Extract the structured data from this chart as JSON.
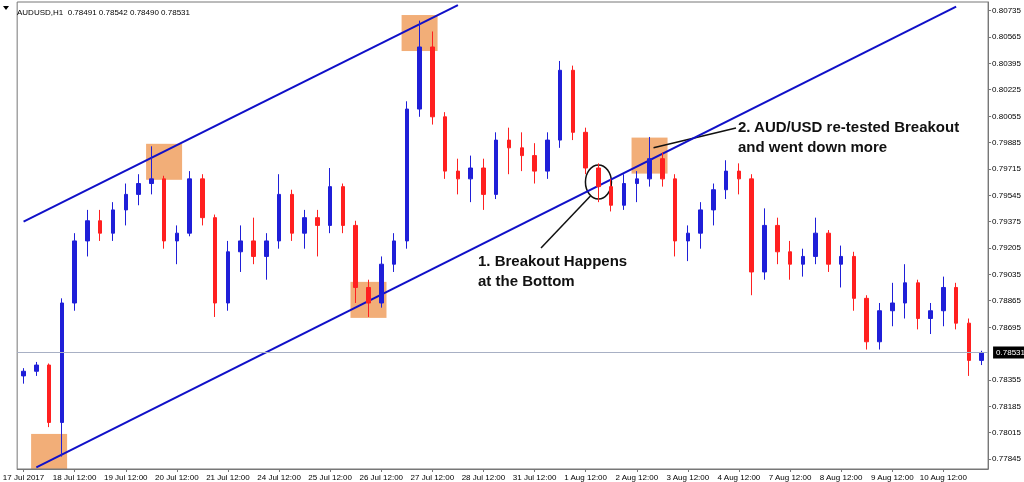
{
  "chart_data": {
    "type": "candlestick",
    "title": "AUDUSD,H1  0.78491 0.78542 0.78490 0.78531",
    "categories": [
      "17 Jul 2017",
      null,
      null,
      null,
      "18 Jul 12:00",
      null,
      null,
      null,
      "19 Jul 12:00",
      null,
      null,
      null,
      "20 Jul 12:00",
      null,
      null,
      null,
      "21 Jul 12:00",
      null,
      null,
      null,
      "24 Jul 12:00",
      null,
      null,
      null,
      "25 Jul 12:00",
      null,
      null,
      null,
      "26 Jul 12:00",
      null,
      null,
      null,
      "27 Jul 12:00",
      null,
      null,
      null,
      "28 Jul 12:00",
      null,
      null,
      null,
      "31 Jul 12:00",
      null,
      null,
      null,
      "1 Aug 12:00",
      null,
      null,
      null,
      "2 Aug 12:00",
      null,
      null,
      null,
      "3 Aug 12:00",
      null,
      null,
      null,
      "4 Aug 12:00",
      null,
      null,
      null,
      "7 Aug 12:00",
      null,
      null,
      null,
      "8 Aug 12:00",
      null,
      null,
      null,
      "9 Aug 12:00",
      null,
      null,
      null,
      "10 Aug 12:00",
      null,
      null,
      null
    ],
    "series": [
      {
        "ohlc": [
          [
            0.7838,
            0.7843,
            0.7833,
            0.7841
          ],
          [
            0.7841,
            0.7847,
            0.7838,
            0.7845
          ],
          [
            0.7845,
            0.7846,
            0.7805,
            0.7808
          ],
          [
            0.7808,
            0.7888,
            0.7786,
            0.7885
          ],
          [
            0.7885,
            0.793,
            0.788,
            0.7925
          ],
          [
            0.7925,
            0.7945,
            0.7915,
            0.7938
          ],
          [
            0.7938,
            0.7945,
            0.7925,
            0.793
          ],
          [
            0.793,
            0.795,
            0.7925,
            0.7945
          ],
          [
            0.7945,
            0.7962,
            0.7935,
            0.7955
          ],
          [
            0.7955,
            0.7968,
            0.7948,
            0.7962
          ],
          [
            0.7962,
            0.7986,
            0.7955,
            0.7965
          ],
          [
            0.7965,
            0.7967,
            0.792,
            0.7925
          ],
          [
            0.7925,
            0.7935,
            0.791,
            0.793
          ],
          [
            0.793,
            0.797,
            0.7928,
            0.7965
          ],
          [
            0.7965,
            0.7968,
            0.7935,
            0.794
          ],
          [
            0.794,
            0.7942,
            0.7876,
            0.7885
          ],
          [
            0.7885,
            0.7925,
            0.788,
            0.7918
          ],
          [
            0.7918,
            0.7935,
            0.7905,
            0.7925
          ],
          [
            0.7925,
            0.794,
            0.791,
            0.7915
          ],
          [
            0.7915,
            0.793,
            0.79,
            0.7925
          ],
          [
            0.7925,
            0.7968,
            0.792,
            0.7955
          ],
          [
            0.7955,
            0.7958,
            0.7925,
            0.793
          ],
          [
            0.793,
            0.7945,
            0.792,
            0.794
          ],
          [
            0.794,
            0.7945,
            0.7915,
            0.7935
          ],
          [
            0.7935,
            0.7972,
            0.793,
            0.796
          ],
          [
            0.796,
            0.7962,
            0.793,
            0.7935
          ],
          [
            0.7935,
            0.7938,
            0.7885,
            0.7895
          ],
          [
            0.7895,
            0.79,
            0.7876,
            0.7885
          ],
          [
            0.7885,
            0.7915,
            0.7882,
            0.791
          ],
          [
            0.791,
            0.793,
            0.7905,
            0.7925
          ],
          [
            0.7925,
            0.8015,
            0.792,
            0.801
          ],
          [
            0.801,
            0.8067,
            0.8005,
            0.805
          ],
          [
            0.805,
            0.806,
            0.8,
            0.8005
          ],
          [
            0.8005,
            0.8008,
            0.7965,
            0.797
          ],
          [
            0.797,
            0.7978,
            0.7955,
            0.7965
          ],
          [
            0.7965,
            0.798,
            0.795,
            0.7972
          ],
          [
            0.7972,
            0.7978,
            0.7945,
            0.7955
          ],
          [
            0.7955,
            0.7995,
            0.7952,
            0.799
          ],
          [
            0.799,
            0.7998,
            0.7968,
            0.7985
          ],
          [
            0.7985,
            0.7995,
            0.797,
            0.798
          ],
          [
            0.798,
            0.7988,
            0.7962,
            0.797
          ],
          [
            0.797,
            0.7995,
            0.7965,
            0.799
          ],
          [
            0.799,
            0.8041,
            0.7985,
            0.8035
          ],
          [
            0.8035,
            0.8038,
            0.799,
            0.7995
          ],
          [
            0.7995,
            0.7998,
            0.7968,
            0.7972
          ],
          [
            0.7972,
            0.7975,
            0.795,
            0.796
          ],
          [
            0.796,
            0.7965,
            0.7944,
            0.7948
          ],
          [
            0.7948,
            0.7968,
            0.7945,
            0.7962
          ],
          [
            0.7962,
            0.797,
            0.795,
            0.7965
          ],
          [
            0.7965,
            0.7992,
            0.796,
            0.7978
          ],
          [
            0.7978,
            0.7982,
            0.796,
            0.7965
          ],
          [
            0.7965,
            0.7968,
            0.7915,
            0.7925
          ],
          [
            0.7925,
            0.7935,
            0.7912,
            0.793
          ],
          [
            0.793,
            0.795,
            0.792,
            0.7945
          ],
          [
            0.7945,
            0.7962,
            0.7935,
            0.7958
          ],
          [
            0.7958,
            0.7977,
            0.7952,
            0.797
          ],
          [
            0.797,
            0.7975,
            0.7955,
            0.7965
          ],
          [
            0.7965,
            0.7968,
            0.789,
            0.7905
          ],
          [
            0.7905,
            0.7946,
            0.79,
            0.7935
          ],
          [
            0.7935,
            0.794,
            0.791,
            0.7918
          ],
          [
            0.7918,
            0.7925,
            0.79,
            0.791
          ],
          [
            0.791,
            0.792,
            0.7902,
            0.7915
          ],
          [
            0.7915,
            0.794,
            0.791,
            0.793
          ],
          [
            0.793,
            0.7932,
            0.7905,
            0.791
          ],
          [
            0.791,
            0.7922,
            0.7895,
            0.7915
          ],
          [
            0.7915,
            0.7918,
            0.788,
            0.7888
          ],
          [
            0.7888,
            0.789,
            0.7855,
            0.786
          ],
          [
            0.786,
            0.7885,
            0.7855,
            0.788
          ],
          [
            0.788,
            0.7898,
            0.787,
            0.7885
          ],
          [
            0.7885,
            0.791,
            0.7875,
            0.7898
          ],
          [
            0.7898,
            0.79,
            0.7868,
            0.7875
          ],
          [
            0.7875,
            0.7885,
            0.7865,
            0.788
          ],
          [
            0.788,
            0.7902,
            0.787,
            0.7895
          ],
          [
            0.7895,
            0.7898,
            0.7868,
            0.7872
          ],
          [
            0.7872,
            0.7875,
            0.7838,
            0.7848
          ],
          [
            0.7848,
            0.78542,
            0.7845,
            0.78531
          ]
        ],
        "colors": [
          "#1f1fd8",
          "#1f1fd8",
          "#ff2020",
          "#1f1fd8",
          "#1f1fd8",
          "#1f1fd8",
          "#ff2020",
          "#1f1fd8",
          "#1f1fd8",
          "#1f1fd8",
          "#1f1fd8",
          "#ff2020",
          "#1f1fd8",
          "#1f1fd8",
          "#ff2020",
          "#ff2020",
          "#1f1fd8",
          "#1f1fd8",
          "#ff2020",
          "#1f1fd8",
          "#1f1fd8",
          "#ff2020",
          "#1f1fd8",
          "#ff2020",
          "#1f1fd8",
          "#ff2020",
          "#ff2020",
          "#ff2020",
          "#1f1fd8",
          "#1f1fd8",
          "#1f1fd8",
          "#1f1fd8",
          "#ff2020",
          "#ff2020",
          "#ff2020",
          "#1f1fd8",
          "#ff2020",
          "#1f1fd8",
          "#ff2020",
          "#ff2020",
          "#ff2020",
          "#1f1fd8",
          "#1f1fd8",
          "#ff2020",
          "#ff2020",
          "#ff2020",
          "#ff2020",
          "#1f1fd8",
          "#1f1fd8",
          "#1f1fd8",
          "#ff2020",
          "#ff2020",
          "#1f1fd8",
          "#1f1fd8",
          "#1f1fd8",
          "#1f1fd8",
          "#ff2020",
          "#ff2020",
          "#1f1fd8",
          "#ff2020",
          "#ff2020",
          "#1f1fd8",
          "#1f1fd8",
          "#ff2020",
          "#1f1fd8",
          "#ff2020",
          "#ff2020",
          "#1f1fd8",
          "#1f1fd8",
          "#1f1fd8",
          "#ff2020",
          "#1f1fd8",
          "#1f1fd8",
          "#ff2020",
          "#ff2020",
          "#1f1fd8"
        ]
      },
      {
        "type": "line",
        "color": "#1010c8",
        "values": [
          0.79375,
          null,
          null,
          null,
          null,
          null,
          null,
          null,
          null,
          null,
          null,
          null,
          null,
          null,
          null,
          null,
          null,
          null,
          null,
          null,
          null,
          null,
          null,
          null,
          null,
          null,
          null,
          null,
          null,
          null,
          null,
          null,
          null,
          null,
          0.8077,
          null,
          null,
          null,
          null,
          null,
          null,
          null,
          null,
          null,
          null,
          null,
          null,
          null,
          null,
          null,
          null,
          null,
          null,
          null,
          null,
          null,
          null,
          null,
          null,
          null,
          null,
          null,
          null,
          null,
          null,
          null,
          null,
          null,
          null,
          null,
          null,
          null,
          null,
          null,
          null,
          null
        ]
      },
      {
        "type": "line",
        "color": "#1010c8",
        "values": [
          null,
          0.7779,
          null,
          null,
          null,
          null,
          null,
          null,
          null,
          null,
          null,
          null,
          null,
          null,
          null,
          null,
          null,
          null,
          null,
          null,
          null,
          null,
          null,
          null,
          null,
          null,
          null,
          null,
          null,
          null,
          null,
          null,
          null,
          null,
          null,
          null,
          null,
          null,
          null,
          null,
          null,
          null,
          null,
          null,
          null,
          null,
          null,
          null,
          null,
          null,
          null,
          null,
          null,
          null,
          null,
          null,
          null,
          null,
          null,
          null,
          null,
          null,
          null,
          null,
          null,
          null,
          null,
          null,
          null,
          null,
          null,
          null,
          null,
          0.8076,
          null,
          null
        ]
      }
    ],
    "ylim": [
      0.7778,
      0.8079
    ],
    "yticks": [
      0.80735,
      0.80565,
      0.80395,
      0.80225,
      0.80055,
      0.79885,
      0.79715,
      0.79545,
      0.79375,
      0.79205,
      0.79035,
      0.78865,
      0.78695,
      0.78355,
      0.78185,
      0.78015,
      0.77845
    ],
    "ref_lines": [
      {
        "axis": "y",
        "value": 0.78531,
        "label": "0.78531",
        "color": "#a8b0c4"
      }
    ],
    "annotations": [
      "1. Breakout Happens at the Bottom",
      "2. AUD/USD re-tested Breakout and went down more"
    ],
    "grid": false,
    "marker": "none"
  }
}
